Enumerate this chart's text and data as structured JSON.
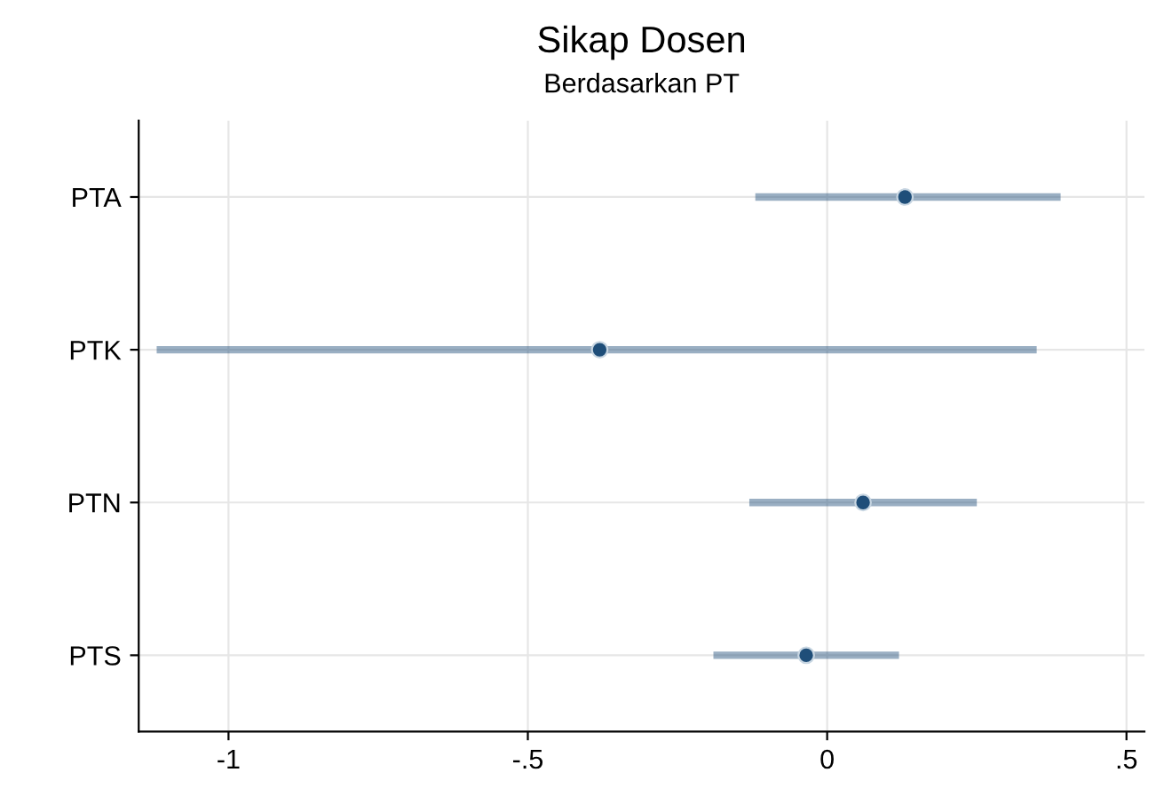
{
  "chart_data": {
    "type": "scatter",
    "orientation": "horizontal",
    "title": "Sikap Dosen",
    "subtitle": "Berdasarkan PT",
    "categories": [
      "PTA",
      "PTK",
      "PTN",
      "PTS"
    ],
    "series": [
      {
        "color": "#1f4e79",
        "values": [
          0.13,
          -0.38,
          0.06,
          -0.035
        ],
        "errors": [
          [
            -0.12,
            0.39
          ],
          [
            -1.12,
            0.35
          ],
          [
            -0.13,
            0.25
          ],
          [
            -0.19,
            0.12
          ]
        ]
      }
    ],
    "xlim": [
      -1.15,
      0.53
    ],
    "xticks": [
      {
        "value": -1,
        "label": "-1"
      },
      {
        "value": -0.5,
        "label": "-.5"
      },
      {
        "value": 0,
        "label": "0"
      },
      {
        "value": 0.5,
        "label": ".5"
      }
    ],
    "grid": true,
    "marker": "circle"
  }
}
